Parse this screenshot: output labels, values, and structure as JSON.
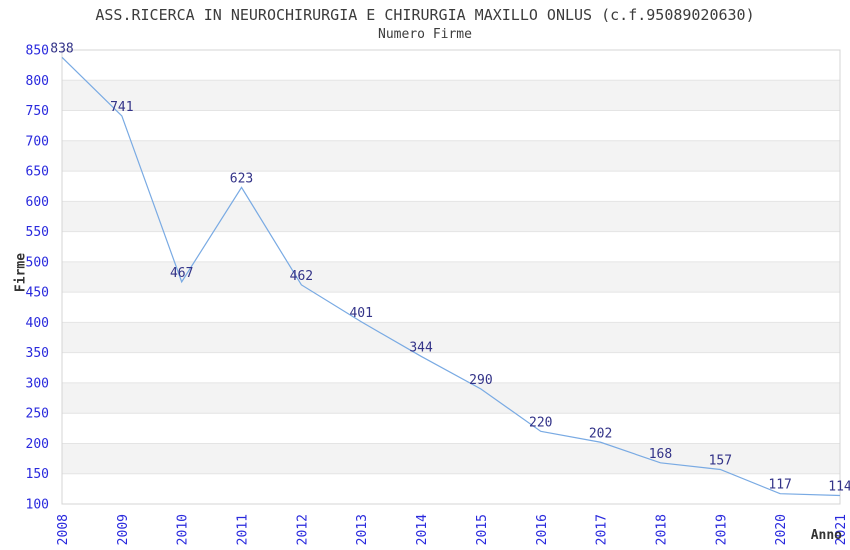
{
  "chart_data": {
    "type": "line",
    "title": "ASS.RICERCA IN NEUROCHIRURGIA E CHIRURGIA MAXILLO ONLUS (c.f.95089020630)",
    "subtitle": "Numero Firme",
    "xlabel": "Anno",
    "ylabel": "Firme",
    "categories": [
      "2008",
      "2009",
      "2010",
      "2011",
      "2012",
      "2013",
      "2014",
      "2015",
      "2016",
      "2017",
      "2018",
      "2019",
      "2020",
      "2021"
    ],
    "series": [
      {
        "name": "Numero Firme",
        "values": [
          838,
          741,
          467,
          623,
          462,
          401,
          344,
          290,
          220,
          202,
          168,
          157,
          117,
          114
        ]
      }
    ],
    "ylim": [
      100,
      850
    ],
    "ytick_step": 50,
    "grid": true,
    "legend_position": "none",
    "band_pattern": "alternating-horizontal",
    "colors": {
      "line": "#79aae3",
      "tick_label": "#2929dd",
      "data_label": "#333388",
      "band": "#f3f3f3",
      "grid_line": "#e4e4e4",
      "border": "#d4d4d4",
      "title_text": "#3c3c3c",
      "axis_title": "#333333",
      "background": "#ffffff"
    }
  }
}
